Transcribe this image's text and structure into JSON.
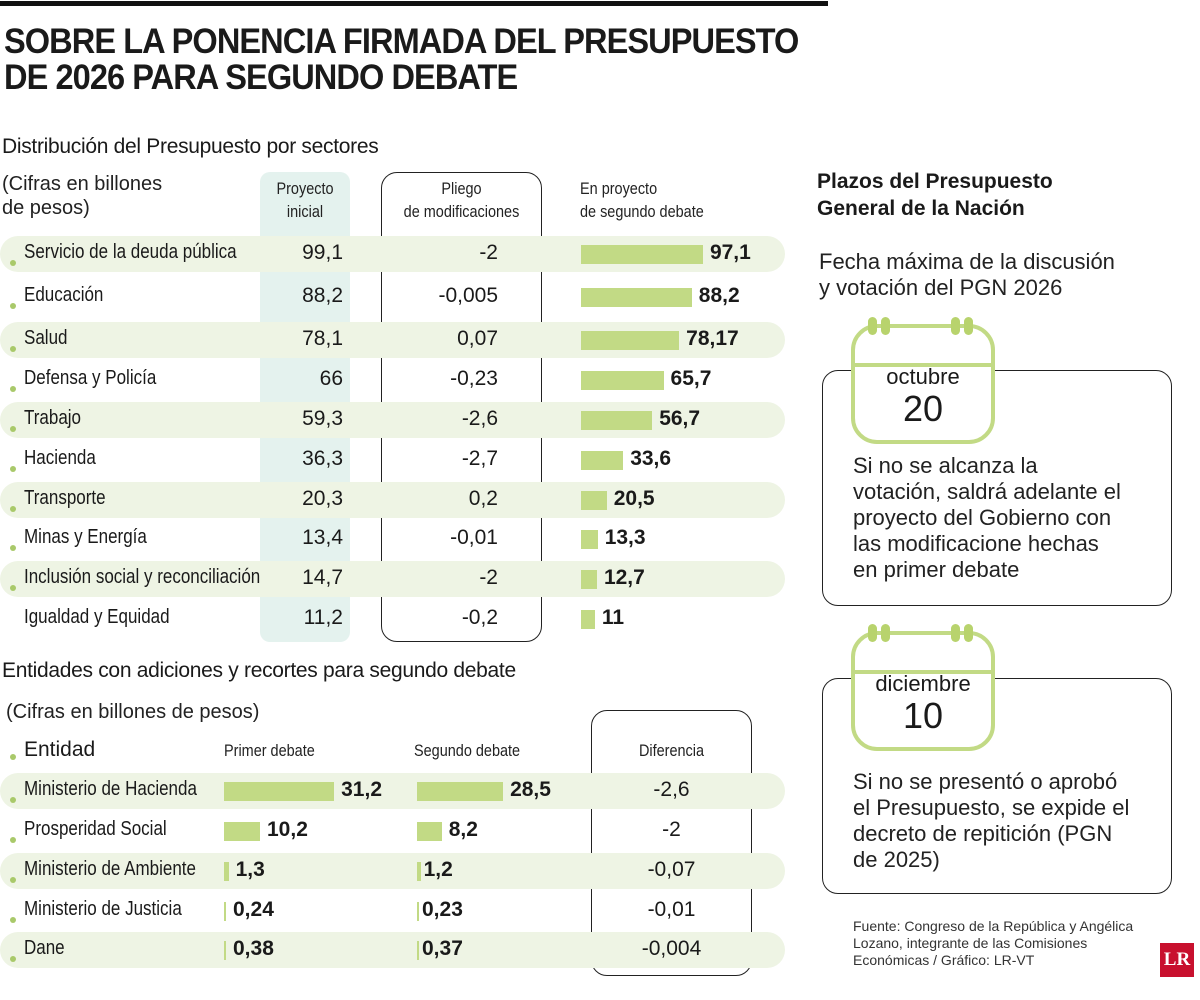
{
  "title": [
    "SOBRE LA PONENCIA FIRMADA DEL PRESUPUESTO",
    "DE 2026 PARA SEGUNDO DEBATE"
  ],
  "colors": {
    "bar": "#c2da85",
    "band": "#eef4e4",
    "highlight": "#e4f2ee",
    "logo": "#c8102e"
  },
  "chart_data": [
    {
      "type": "table",
      "title": "Distribución del Presupuesto por sectores",
      "note": [
        "(Cifras en billones",
        "de pesos)"
      ],
      "columns": [
        "Proyecto inicial",
        "Pliego de modificaciones",
        "En proyecto de segundo debate"
      ],
      "column_headers": [
        [
          "Proyecto",
          "inicial"
        ],
        [
          "Pliego",
          "de modificaciones"
        ],
        [
          "En proyecto",
          "de segundo debate"
        ]
      ],
      "rows": [
        {
          "sector": "Servicio de la deuda pública",
          "inicial": "99,1",
          "pliego": "-2",
          "segundo": "97,1",
          "value": 97.1
        },
        {
          "sector": "Educación",
          "inicial": "88,2",
          "pliego": "-0,005",
          "segundo": "88,2",
          "value": 88.2
        },
        {
          "sector": "Salud",
          "inicial": "78,1",
          "pliego": "0,07",
          "segundo": "78,17",
          "value": 78.17
        },
        {
          "sector": "Defensa y Policía",
          "inicial": "66",
          "pliego": "-0,23",
          "segundo": "65,7",
          "value": 65.7
        },
        {
          "sector": "Trabajo",
          "inicial": "59,3",
          "pliego": "-2,6",
          "segundo": "56,7",
          "value": 56.7
        },
        {
          "sector": "Hacienda",
          "inicial": "36,3",
          "pliego": "-2,7",
          "segundo": "33,6",
          "value": 33.6
        },
        {
          "sector": "Transporte",
          "inicial": "20,3",
          "pliego": "0,2",
          "segundo": "20,5",
          "value": 20.5
        },
        {
          "sector": "Minas y Energía",
          "inicial": "13,4",
          "pliego": "-0,01",
          "segundo": "13,3",
          "value": 13.3
        },
        {
          "sector": "Inclusión social y reconciliación",
          "inicial": "14,7",
          "pliego": "-2",
          "segundo": "12,7",
          "value": 12.7
        },
        {
          "sector": "Igualdad y Equidad",
          "inicial": "11,2",
          "pliego": "-0,2",
          "segundo": "11",
          "value": 11
        }
      ]
    },
    {
      "type": "table",
      "title": "Entidades con adiciones y recortes para segundo debate",
      "note": "(Cifras en billones de pesos)",
      "columns": [
        "Entidad",
        "Primer debate",
        "Segundo debate",
        "Diferencia"
      ],
      "rows": [
        {
          "entidad": "Ministerio de Hacienda",
          "primer": "31,2",
          "p": 31.2,
          "segundo": "28,5",
          "s": 28.5,
          "dif": "-2,6"
        },
        {
          "entidad": "Prosperidad Social",
          "primer": "10,2",
          "p": 10.2,
          "segundo": "8,2",
          "s": 8.2,
          "dif": "-2"
        },
        {
          "entidad": "Ministerio de Ambiente",
          "primer": "1,3",
          "p": 1.3,
          "segundo": "1,2",
          "s": 1.2,
          "dif": "-0,07"
        },
        {
          "entidad": "Ministerio de Justicia",
          "primer": "0,24",
          "p": 0.24,
          "segundo": "0,23",
          "s": 0.23,
          "dif": "-0,01"
        },
        {
          "entidad": "Dane",
          "primer": "0,38",
          "p": 0.38,
          "segundo": "0,37",
          "s": 0.37,
          "dif": "-0,004"
        }
      ]
    }
  ],
  "plazos": {
    "title": [
      "Plazos del Presupuesto",
      "General de la Nación"
    ],
    "intro": [
      "Fecha máxima de la discusión",
      "y votación del PGN 2026"
    ],
    "items": [
      {
        "month": "octubre",
        "day": "20",
        "text": [
          "Si no se alcanza la",
          "votación, saldrá adelante el",
          "proyecto del Gobierno con",
          "las modificacione hechas",
          "en primer debate"
        ]
      },
      {
        "month": "diciembre",
        "day": "10",
        "text": [
          "Si no se presentó o aprobó",
          "el Presupuesto, se expide el",
          "decreto de repitición (PGN",
          "de 2025)"
        ]
      }
    ]
  },
  "source": [
    "Fuente: Congreso de la República y Angélica",
    "Lozano, integrante de las Comisiones",
    "Económicas / Gráfico: LR-VT"
  ],
  "logo": "LR"
}
